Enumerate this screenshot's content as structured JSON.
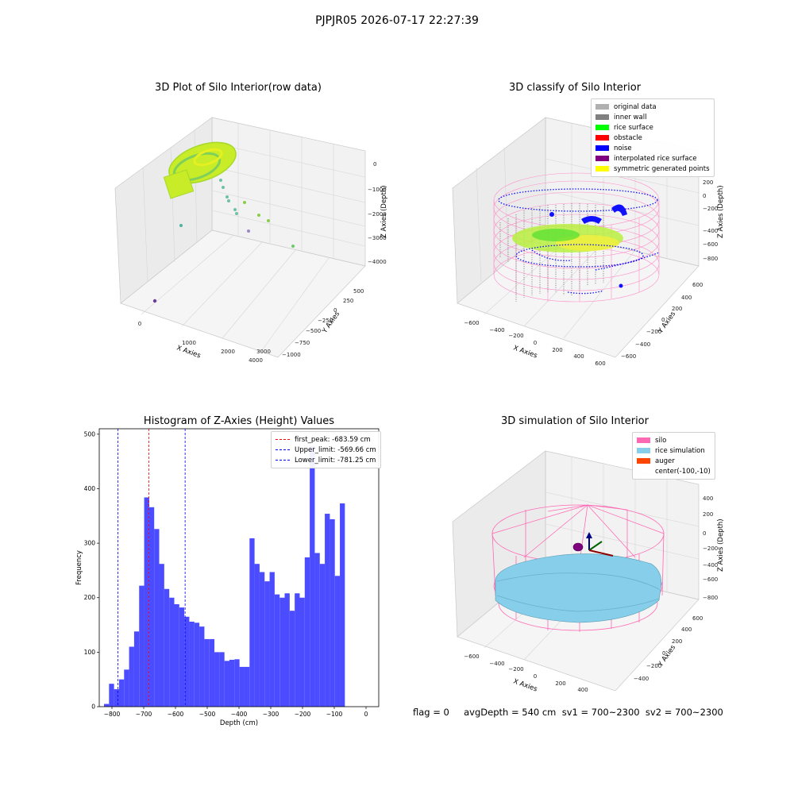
{
  "suptitle": "PJPJR05 2026-07-17 22:27:39",
  "status_line": "flag = 0     avgDepth = 540 cm  sv1 = 700~2300  sv2 = 700~2300",
  "raw_plot": {
    "title": "3D Plot of Silo Interior(row data)",
    "xlabel": "X Axies",
    "ylabel": "Y Axies",
    "zlabel": "Z Axies (Depth)",
    "x_ticks": [
      "0",
      "1000",
      "2000",
      "3000",
      "4000"
    ],
    "y_ticks": [
      "500",
      "250",
      "0",
      "−250",
      "−500",
      "−750",
      "−1000"
    ],
    "z_ticks": [
      "0",
      "−1000",
      "−2000",
      "−3000",
      "−4000"
    ]
  },
  "classify_plot": {
    "title": "3D classify of Silo Interior",
    "xlabel": "X Axies",
    "ylabel": "Y Axies",
    "zlabel": "Z Axies (Depth)",
    "x_ticks": [
      "−600",
      "−400",
      "−200",
      "0",
      "200",
      "400",
      "600"
    ],
    "y_ticks": [
      "600",
      "400",
      "200",
      "0",
      "−200",
      "−400",
      "−600"
    ],
    "z_ticks": [
      "200",
      "0",
      "−200",
      "−400",
      "−600",
      "−800"
    ],
    "legend": [
      {
        "label": "original data",
        "color": "#b0b0b0"
      },
      {
        "label": "inner wall",
        "color": "#808080"
      },
      {
        "label": "rice surface",
        "color": "#00ff00"
      },
      {
        "label": "obstacle",
        "color": "#ff0000"
      },
      {
        "label": "noise",
        "color": "#0000ff"
      },
      {
        "label": "interpolated rice surface",
        "color": "#800080"
      },
      {
        "label": "symmetric generated points",
        "color": "#ffff00"
      }
    ]
  },
  "sim_plot": {
    "title": "3D simulation of Silo Interior",
    "xlabel": "X Axies",
    "ylabel": "Y Axies",
    "zlabel": "Z Axies (Depth)",
    "x_ticks": [
      "−600",
      "−400",
      "−200",
      "0",
      "200",
      "400"
    ],
    "y_ticks": [
      "600",
      "400",
      "200",
      "0",
      "−200",
      "−400"
    ],
    "z_ticks": [
      "400",
      "200",
      "0",
      "−200",
      "−400",
      "−600",
      "−800"
    ],
    "legend": [
      {
        "label": "silo",
        "color": "#ff69b4"
      },
      {
        "label": "rice simulation",
        "color": "#87ceeb"
      },
      {
        "label": "auger",
        "color": "#ff4500"
      },
      {
        "label": "center(-100,-10)",
        "color": ""
      }
    ]
  },
  "chart_data": {
    "type": "bar",
    "title": "Histogram of Z-Axies (Height) Values",
    "xlabel": "Depth (cm)",
    "ylabel": "Frequency",
    "xlim": [
      -840,
      40
    ],
    "ylim": [
      0,
      510
    ],
    "x_ticks": [
      -800,
      -700,
      -600,
      -500,
      -400,
      -300,
      -200,
      -100,
      0
    ],
    "y_ticks": [
      0,
      100,
      200,
      300,
      400,
      500
    ],
    "bar_color": "#4b4bff",
    "bin_start": -825,
    "bin_width": 15.8,
    "values": [
      5,
      42,
      32,
      50,
      68,
      110,
      138,
      222,
      384,
      366,
      326,
      262,
      216,
      200,
      188,
      182,
      165,
      156,
      154,
      147,
      124,
      124,
      100,
      100,
      84,
      86,
      87,
      73,
      73,
      309,
      262,
      247,
      230,
      247,
      206,
      200,
      208,
      176,
      208,
      200,
      274,
      478,
      282,
      262,
      354,
      344,
      240,
      373
    ],
    "vlines": [
      {
        "label": "first_peak: -683.59 cm",
        "x": -683.59,
        "color": "#ff0000"
      },
      {
        "label": "Upper_limit: -569.66 cm",
        "x": -569.66,
        "color": "#0000ff"
      },
      {
        "label": "Lower_limit: -781.25 cm",
        "x": -781.25,
        "color": "#0000ff"
      }
    ],
    "legend_position": "upper-right"
  }
}
